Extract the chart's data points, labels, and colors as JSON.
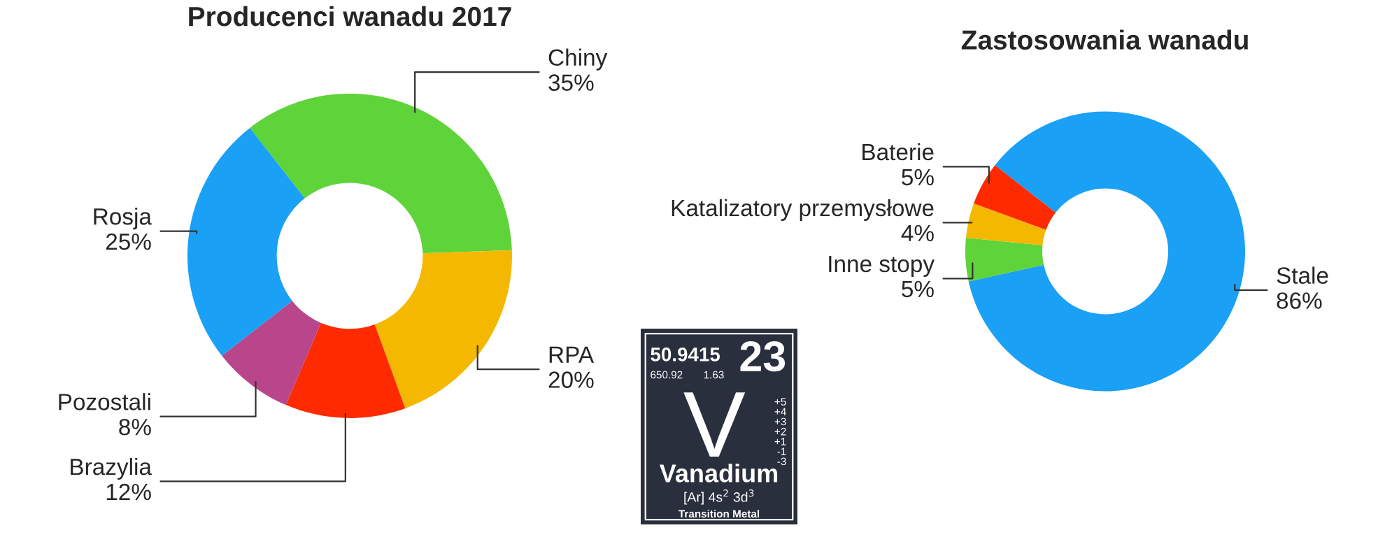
{
  "chart_data": [
    {
      "type": "donut",
      "title": "Producenci wanadu 2017",
      "categories": [
        "Chiny",
        "RPA",
        "Brazylia",
        "Pozostali",
        "Rosja"
      ],
      "values": [
        35,
        20,
        12,
        8,
        25
      ],
      "value_labels": [
        "35%",
        "20%",
        "12%",
        "8%",
        "25%"
      ],
      "colors": [
        "#5fd33a",
        "#f5b800",
        "#ff2a00",
        "#b9468a",
        "#1aa0f5"
      ]
    },
    {
      "type": "other",
      "annotations": [
        "50.9415",
        "650.92",
        "1.63",
        "23",
        "+5\n+4\n+3\n+2\n+1\n-1\n-3",
        "V",
        "Vanadium",
        "[Ar] 4s$^{2}$ 3d$^{3}$",
        "Transition Metal"
      ]
    },
    {
      "type": "donut",
      "title": "Zastosowania wanadu",
      "categories": [
        "Stale",
        "Inne stopy",
        "Katalizatory przemysłowe",
        "Baterie"
      ],
      "values": [
        86,
        5,
        4,
        5
      ],
      "value_labels": [
        "86%",
        "5%",
        "4%",
        "5%"
      ],
      "colors": [
        "#1aa0f5",
        "#5fd33a",
        "#f5b800",
        "#ff2a00"
      ]
    }
  ]
}
